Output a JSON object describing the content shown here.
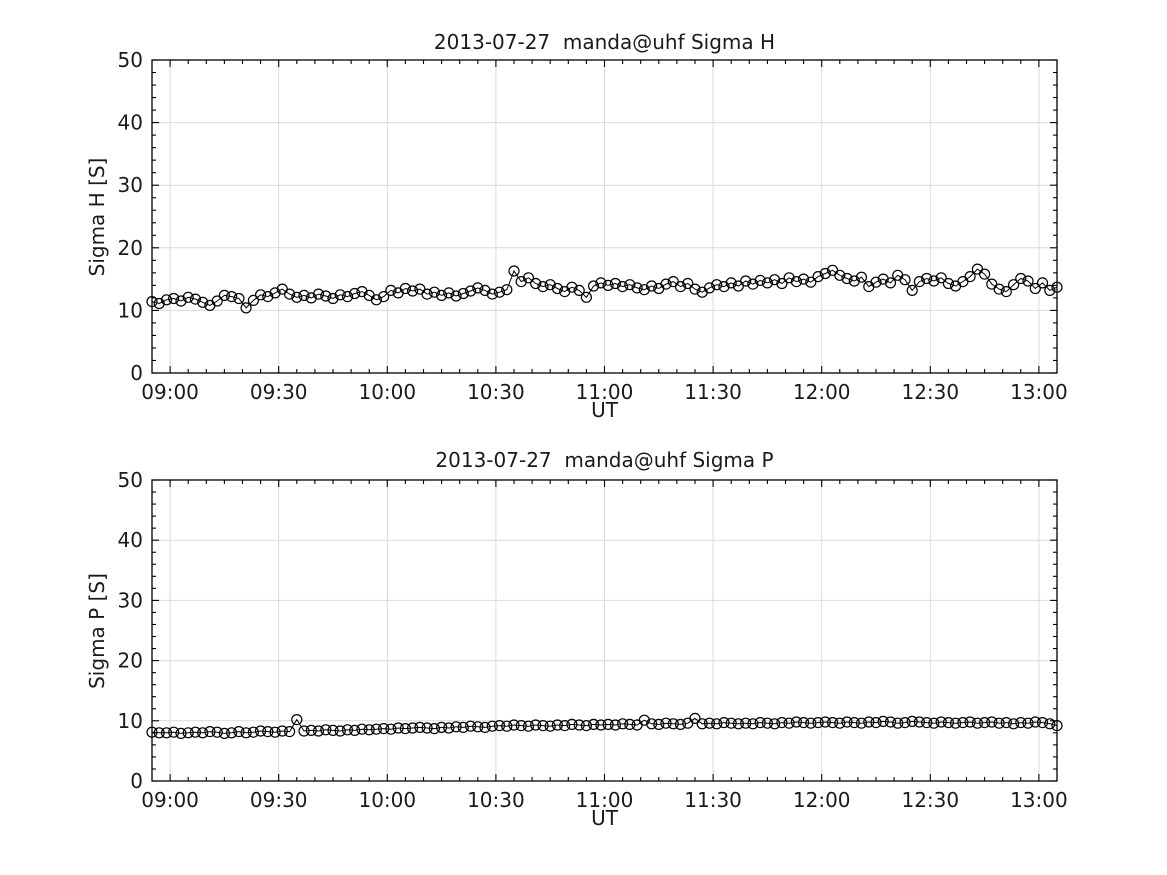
{
  "figure": {
    "background": "#ffffff"
  },
  "colors": {
    "axes": "#000000",
    "grid": "#d9d9d9",
    "data": "#000000",
    "text": "#1a1a1a"
  },
  "chart_data": [
    {
      "type": "line",
      "title": "2013-07-27  manda@uhf Sigma H",
      "xlabel": "UT",
      "ylabel": "Sigma H [S]",
      "ylim": [
        0,
        50
      ],
      "y_ticks": [
        0,
        10,
        20,
        30,
        40,
        50
      ],
      "y_minor_step": 2,
      "xlim_minutes": [
        -5,
        245
      ],
      "x_tick_minutes": [
        0,
        30,
        60,
        90,
        120,
        150,
        180,
        210,
        240
      ],
      "x_tick_labels": [
        "09:00",
        "09:30",
        "10:00",
        "10:30",
        "11:00",
        "11:30",
        "12:00",
        "12:30",
        "13:00"
      ],
      "x_minor_step_minutes": 5,
      "grid": true,
      "legend": "none",
      "marker": "open-circle",
      "x_start_time": "08:55",
      "x_start_minute": -5,
      "step_minutes": 2,
      "values": [
        11.4,
        11.1,
        11.7,
        11.9,
        11.5,
        12.1,
        11.8,
        11.3,
        10.8,
        11.5,
        12.4,
        12.2,
        11.9,
        10.4,
        11.6,
        12.5,
        12.2,
        12.8,
        13.4,
        12.6,
        12.1,
        12.4,
        12.0,
        12.6,
        12.3,
        11.9,
        12.5,
        12.2,
        12.7,
        13.0,
        12.4,
        11.7,
        12.2,
        13.2,
        12.8,
        13.5,
        13.1,
        13.4,
        12.6,
        12.9,
        12.4,
        12.8,
        12.3,
        12.7,
        13.1,
        13.6,
        13.2,
        12.6,
        12.9,
        13.3,
        16.3,
        14.6,
        15.2,
        14.3,
        13.8,
        14.1,
        13.5,
        13.0,
        13.7,
        13.2,
        12.1,
        13.9,
        14.4,
        14.0,
        14.3,
        13.8,
        14.1,
        13.6,
        13.3,
        13.9,
        13.5,
        14.2,
        14.6,
        13.8,
        14.3,
        13.4,
        12.9,
        13.6,
        14.1,
        13.8,
        14.4,
        13.9,
        14.7,
        14.2,
        14.8,
        14.4,
        14.9,
        14.3,
        15.2,
        14.6,
        15.0,
        14.5,
        15.4,
        15.9,
        16.4,
        15.6,
        15.1,
        14.7,
        15.3,
        13.8,
        14.5,
        15.0,
        14.4,
        15.6,
        14.9,
        13.2,
        14.6,
        15.1,
        14.7,
        15.2,
        14.3,
        13.9,
        14.6,
        15.4,
        16.6,
        15.8,
        14.2,
        13.4,
        13.0,
        14.1,
        15.1,
        14.7,
        13.5,
        14.4,
        13.2,
        13.7
      ]
    },
    {
      "type": "line",
      "title": "2013-07-27  manda@uhf Sigma P",
      "xlabel": "UT",
      "ylabel": "Sigma P [S]",
      "ylim": [
        0,
        50
      ],
      "y_ticks": [
        0,
        10,
        20,
        30,
        40,
        50
      ],
      "y_minor_step": 2,
      "xlim_minutes": [
        -5,
        245
      ],
      "x_tick_minutes": [
        0,
        30,
        60,
        90,
        120,
        150,
        180,
        210,
        240
      ],
      "x_tick_labels": [
        "09:00",
        "09:30",
        "10:00",
        "10:30",
        "11:00",
        "11:30",
        "12:00",
        "12:30",
        "13:00"
      ],
      "x_minor_step_minutes": 5,
      "grid": true,
      "legend": "none",
      "marker": "open-circle",
      "x_start_time": "08:55",
      "x_start_minute": -5,
      "step_minutes": 2,
      "values": [
        8.1,
        8.0,
        8.0,
        8.1,
        7.9,
        8.0,
        8.1,
        8.0,
        8.2,
        8.1,
        7.9,
        8.0,
        8.2,
        8.0,
        8.1,
        8.3,
        8.2,
        8.1,
        8.3,
        8.2,
        10.2,
        8.3,
        8.4,
        8.3,
        8.5,
        8.4,
        8.3,
        8.5,
        8.4,
        8.6,
        8.5,
        8.6,
        8.7,
        8.6,
        8.8,
        8.7,
        8.8,
        8.9,
        8.8,
        8.7,
        8.9,
        8.8,
        9.0,
        8.9,
        9.1,
        9.0,
        8.9,
        9.1,
        9.2,
        9.1,
        9.3,
        9.2,
        9.1,
        9.3,
        9.2,
        9.1,
        9.3,
        9.2,
        9.4,
        9.3,
        9.2,
        9.4,
        9.3,
        9.4,
        9.3,
        9.5,
        9.4,
        9.3,
        10.1,
        9.5,
        9.4,
        9.6,
        9.5,
        9.4,
        9.6,
        10.4,
        9.5,
        9.6,
        9.5,
        9.7,
        9.6,
        9.5,
        9.6,
        9.5,
        9.7,
        9.6,
        9.5,
        9.7,
        9.6,
        9.8,
        9.7,
        9.6,
        9.7,
        9.8,
        9.7,
        9.6,
        9.8,
        9.7,
        9.6,
        9.8,
        9.7,
        9.9,
        9.8,
        9.6,
        9.7,
        9.9,
        9.8,
        9.7,
        9.6,
        9.8,
        9.7,
        9.6,
        9.7,
        9.8,
        9.6,
        9.7,
        9.8,
        9.6,
        9.7,
        9.5,
        9.7,
        9.6,
        9.8,
        9.7,
        9.5,
        9.2
      ]
    }
  ]
}
